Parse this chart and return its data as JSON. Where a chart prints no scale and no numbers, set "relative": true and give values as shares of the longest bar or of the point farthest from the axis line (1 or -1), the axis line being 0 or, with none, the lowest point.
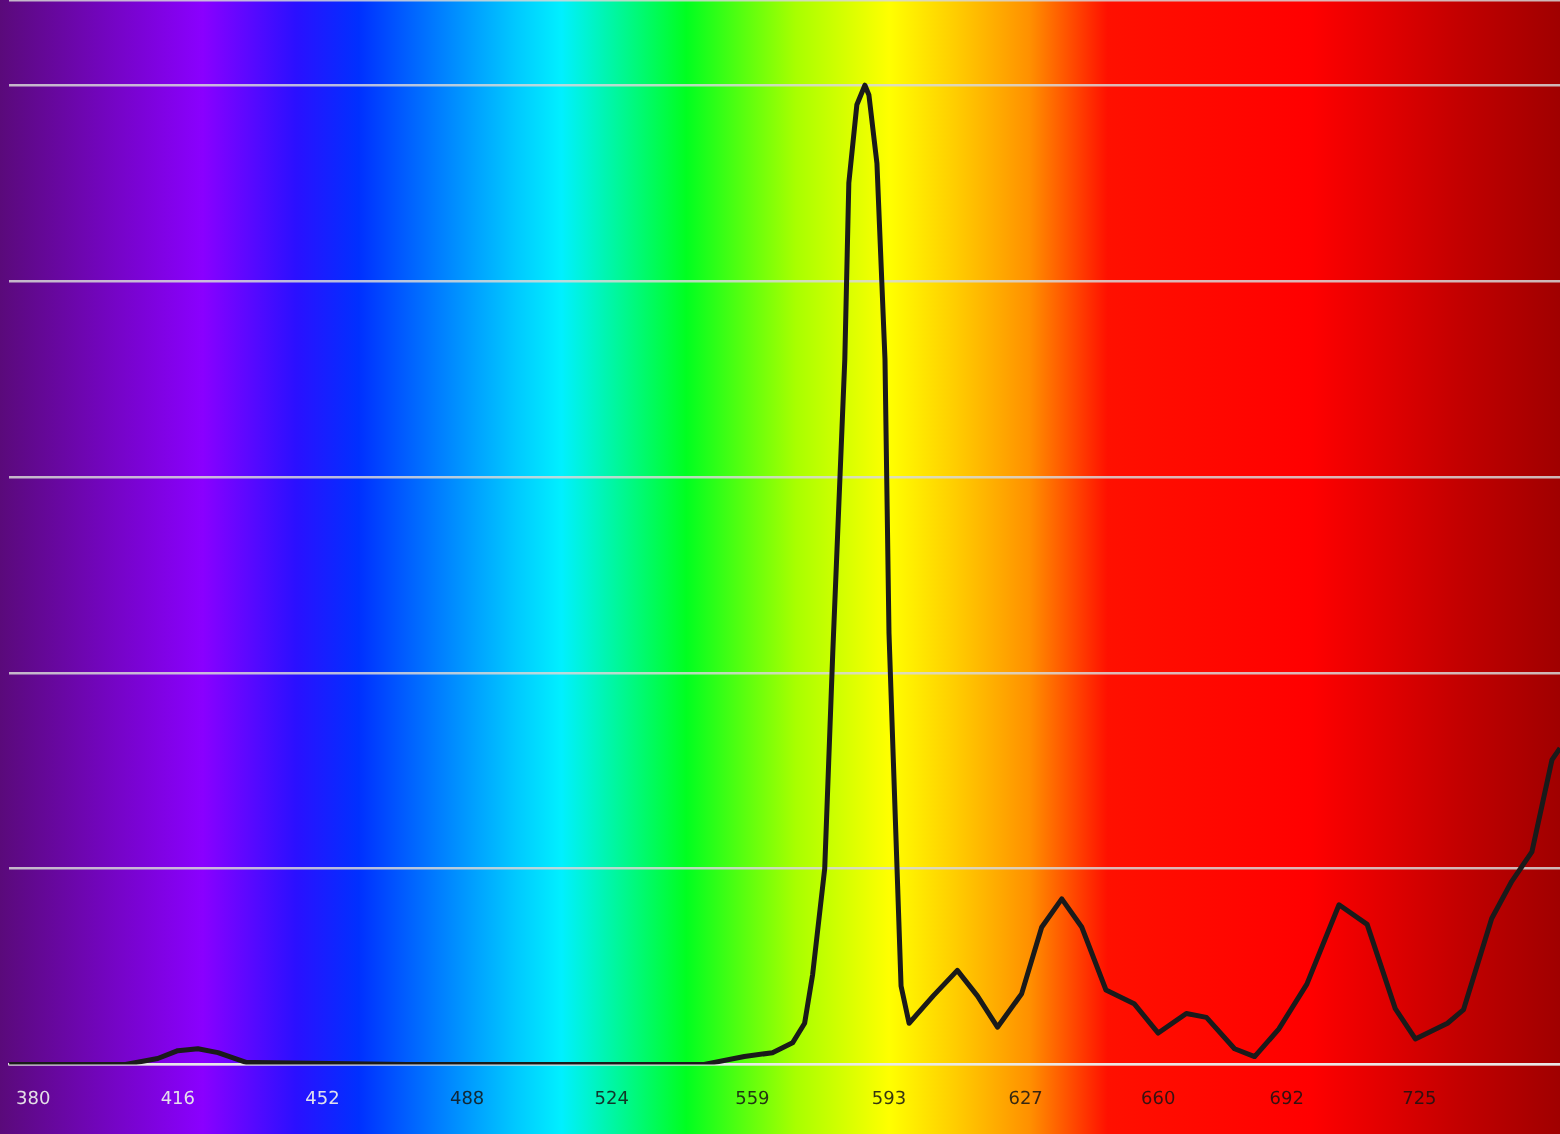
{
  "chart_data": {
    "type": "line",
    "relative": true,
    "grid": "y",
    "marker": "none",
    "xlim": [
      374,
      760
    ],
    "xticks": [
      380,
      416,
      452,
      488,
      524,
      559,
      593,
      627,
      660,
      692,
      725
    ],
    "x": [
      374,
      393,
      403,
      411,
      416,
      421,
      426,
      433,
      473,
      522,
      547,
      557,
      564,
      569,
      572,
      574,
      577,
      579,
      582,
      583,
      585,
      587,
      588,
      590,
      592,
      593,
      595,
      596,
      598,
      604,
      610,
      615,
      620,
      626,
      631,
      636,
      641,
      647,
      654,
      660,
      667,
      672,
      679,
      684,
      690,
      697,
      705,
      712,
      719,
      724,
      732,
      736,
      743,
      748,
      753,
      758,
      760
    ],
    "series": [
      {
        "color": "#1a1a1a",
        "values": [
          0,
          0,
          0,
          0.006,
          0.014,
          0.016,
          0.012,
          0.002,
          0,
          0,
          0,
          0.008,
          0.012,
          0.022,
          0.042,
          0.092,
          0.2,
          0.42,
          0.72,
          0.9,
          0.98,
          1,
          0.99,
          0.92,
          0.72,
          0.44,
          0.2,
          0.08,
          0.042,
          0.07,
          0.096,
          0.07,
          0.038,
          0.072,
          0.14,
          0.169,
          0.14,
          0.076,
          0.062,
          0.032,
          0.052,
          0.048,
          0.016,
          0.008,
          0.036,
          0.082,
          0.163,
          0.143,
          0.057,
          0.026,
          0.042,
          0.056,
          0.149,
          0.187,
          0.217,
          0.311,
          0.323
        ]
      }
    ]
  }
}
